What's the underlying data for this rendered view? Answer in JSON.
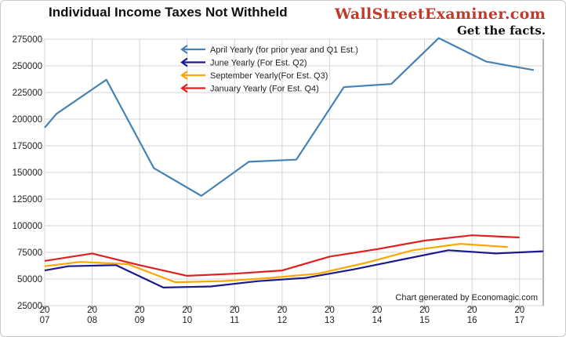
{
  "title": "Individual Income Taxes Not Withheld",
  "brand": "WallStreetExaminer.com",
  "tagline": "Get the facts.",
  "credit": "Chart generated by Economagic.com",
  "chart_data": {
    "type": "line",
    "ylim": [
      25000,
      275000
    ],
    "xlim": [
      2007,
      2017.5
    ],
    "yticks": [
      25000,
      50000,
      75000,
      100000,
      125000,
      150000,
      175000,
      200000,
      225000,
      250000,
      275000
    ],
    "ytick_labels": [
      "25000",
      "50000",
      "75000",
      "100000",
      "125000",
      "150000",
      "175000",
      "200000",
      "225000",
      "250000",
      "275000"
    ],
    "xticks": [
      {
        "x": 2007,
        "top": "20",
        "bottom": "07"
      },
      {
        "x": 2008,
        "top": "20",
        "bottom": "08"
      },
      {
        "x": 2009,
        "top": "20",
        "bottom": "09"
      },
      {
        "x": 2010,
        "top": "20",
        "bottom": "10"
      },
      {
        "x": 2011,
        "top": "20",
        "bottom": "11"
      },
      {
        "x": 2012,
        "top": "20",
        "bottom": "12"
      },
      {
        "x": 2013,
        "top": "20",
        "bottom": "13"
      },
      {
        "x": 2014,
        "top": "20",
        "bottom": "14"
      },
      {
        "x": 2015,
        "top": "20",
        "bottom": "15"
      },
      {
        "x": 2016,
        "top": "20",
        "bottom": "16"
      },
      {
        "x": 2017,
        "top": "20",
        "bottom": "17"
      }
    ],
    "grid": true,
    "legend_position": "top-center",
    "series": [
      {
        "name": "April Yearly (for prior year and Q1 Est.)",
        "color": "#4682b4",
        "points": [
          [
            2007,
            192000
          ],
          [
            2007.25,
            205000
          ],
          [
            2008.3,
            237000
          ],
          [
            2009.3,
            154000
          ],
          [
            2010.3,
            128000
          ],
          [
            2011.3,
            160000
          ],
          [
            2012.3,
            162000
          ],
          [
            2013.3,
            230000
          ],
          [
            2014.3,
            233000
          ],
          [
            2015.3,
            276000
          ],
          [
            2016.3,
            254000
          ],
          [
            2017.3,
            246000
          ]
        ]
      },
      {
        "name": "June Yearly (For Est. Q2)",
        "color": "#1a1a8c",
        "points": [
          [
            2007,
            58000
          ],
          [
            2007.5,
            62000
          ],
          [
            2008.5,
            63000
          ],
          [
            2009.5,
            42000
          ],
          [
            2010.5,
            43000
          ],
          [
            2011.5,
            48000
          ],
          [
            2012.5,
            51000
          ],
          [
            2013.5,
            59000
          ],
          [
            2014.5,
            68000
          ],
          [
            2015.5,
            77000
          ],
          [
            2016.5,
            74000
          ],
          [
            2017.5,
            76000
          ]
        ]
      },
      {
        "name": "September Yearly(For Est. Q3)",
        "color": "#ffa500",
        "points": [
          [
            2007,
            62000
          ],
          [
            2007.75,
            66000
          ],
          [
            2008.75,
            64000
          ],
          [
            2009.75,
            47000
          ],
          [
            2010.75,
            48000
          ],
          [
            2011.75,
            51000
          ],
          [
            2012.75,
            55000
          ],
          [
            2013.75,
            65000
          ],
          [
            2014.75,
            77000
          ],
          [
            2015.75,
            83000
          ],
          [
            2016.75,
            80000
          ]
        ]
      },
      {
        "name": "January Yearly (For Est. Q4)",
        "color": "#e02020",
        "points": [
          [
            2007,
            67000
          ],
          [
            2008,
            74000
          ],
          [
            2009,
            63000
          ],
          [
            2010,
            53000
          ],
          [
            2011,
            55000
          ],
          [
            2012,
            58000
          ],
          [
            2013,
            71000
          ],
          [
            2014,
            78000
          ],
          [
            2015,
            86000
          ],
          [
            2016,
            91000
          ],
          [
            2017,
            89000
          ]
        ]
      }
    ]
  }
}
